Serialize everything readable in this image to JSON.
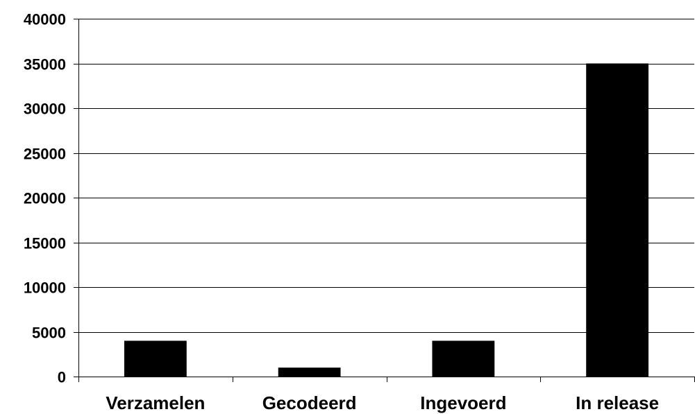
{
  "chart_data": {
    "type": "bar",
    "categories": [
      "Verzamelen",
      "Gecodeerd",
      "Ingevoerd",
      "In release"
    ],
    "values": [
      4000,
      1000,
      4000,
      35000
    ],
    "yticks": [
      "0",
      "5000",
      "10000",
      "15000",
      "20000",
      "25000",
      "30000",
      "35000",
      "40000"
    ],
    "ylim": [
      0,
      40000
    ],
    "grid": true,
    "bar_color": "#000000",
    "grid_color": "#000000"
  }
}
